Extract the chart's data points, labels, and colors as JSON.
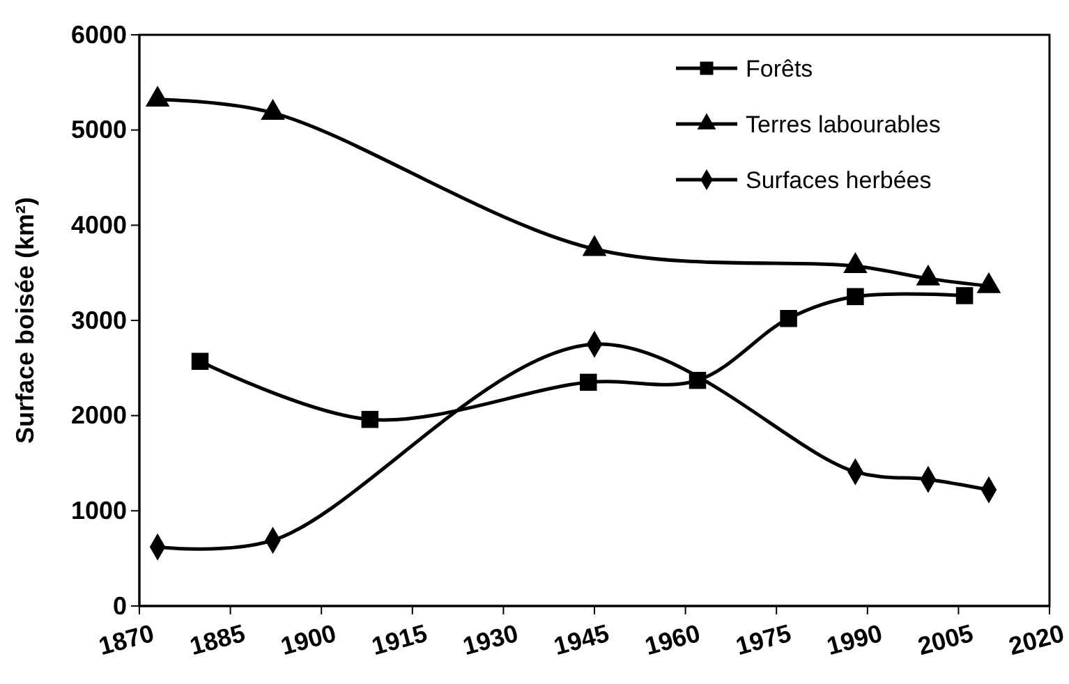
{
  "chart_data": {
    "type": "line",
    "ylabel": "Surface boisée (km²)",
    "xlim": [
      1870,
      2020
    ],
    "xticks": [
      1870,
      1885,
      1900,
      1915,
      1930,
      1945,
      1960,
      1975,
      1990,
      2005,
      2020
    ],
    "ylim": [
      0,
      6000
    ],
    "yticks": [
      0,
      1000,
      2000,
      3000,
      4000,
      5000,
      6000
    ],
    "grid": false,
    "legend": "top right",
    "line_style": "solid",
    "series": [
      {
        "name": "Forêts",
        "color": "#000000",
        "marker": "square",
        "x": [
          1880,
          1908,
          1944,
          1962,
          1977,
          1988,
          2006
        ],
        "values": [
          2570,
          1960,
          2350,
          2370,
          3020,
          3250,
          3260
        ]
      },
      {
        "name": "Terres labourables",
        "color": "#000000",
        "marker": "triangle",
        "x": [
          1873,
          1892,
          1945,
          1988,
          2000,
          2010
        ],
        "values": [
          5320,
          5180,
          3750,
          3570,
          3440,
          3360
        ]
      },
      {
        "name": "Surfaces herbées",
        "color": "#000000",
        "marker": "diamond",
        "x": [
          1873,
          1892,
          1945,
          1988,
          2000,
          2010
        ],
        "values": [
          620,
          690,
          2750,
          1410,
          1330,
          1220
        ]
      }
    ]
  }
}
